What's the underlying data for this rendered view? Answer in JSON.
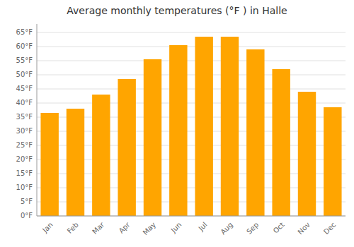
{
  "chart_data": {
    "type": "bar",
    "title": "Average monthly temperatures (°F ) in Halle",
    "categories": [
      "Jan",
      "Feb",
      "Mar",
      "Apr",
      "May",
      "Jun",
      "Jul",
      "Aug",
      "Sep",
      "Oct",
      "Nov",
      "Dec"
    ],
    "values": [
      36.5,
      38.0,
      43.0,
      48.5,
      55.5,
      60.5,
      63.5,
      63.5,
      59.0,
      52.0,
      44.0,
      38.5
    ],
    "color": "#FFA500",
    "ylim": [
      0,
      68
    ],
    "yticks": [
      {
        "value": 0,
        "label": "0°F"
      },
      {
        "value": 5,
        "label": "5°F"
      },
      {
        "value": 10,
        "label": "10°F"
      },
      {
        "value": 15,
        "label": "15°F"
      },
      {
        "value": 20,
        "label": "20°F"
      },
      {
        "value": 25,
        "label": "25°F"
      },
      {
        "value": 30,
        "label": "30°F"
      },
      {
        "value": 35,
        "label": "35°F"
      },
      {
        "value": 40,
        "label": "40°F"
      },
      {
        "value": 45,
        "label": "45°F"
      },
      {
        "value": 50,
        "label": "50°F"
      },
      {
        "value": 55,
        "label": "55°F"
      },
      {
        "value": 60,
        "label": "60°F"
      },
      {
        "value": 65,
        "label": "65°F"
      }
    ],
    "grid": true
  }
}
